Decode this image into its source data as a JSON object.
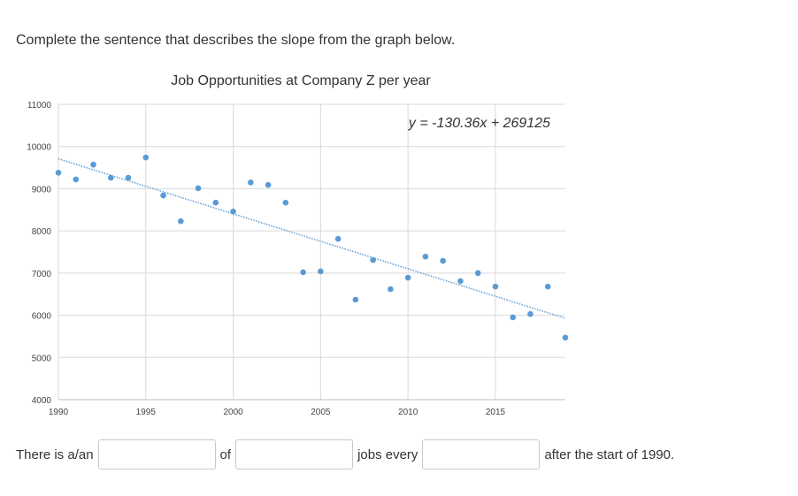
{
  "question": "Complete the sentence that describes the slope from the graph below.",
  "chart_data": {
    "type": "scatter",
    "title": "Job Opportunities at Company Z per year",
    "xlabel": "",
    "ylabel": "",
    "xlim": [
      1990,
      2019
    ],
    "ylim": [
      4000,
      11000
    ],
    "xticks": [
      "1990",
      "1995",
      "2000",
      "2005",
      "2010",
      "2015"
    ],
    "yticks": [
      "4000",
      "5000",
      "6000",
      "7000",
      "8000",
      "9000",
      "10000",
      "11000"
    ],
    "grid": true,
    "x": [
      1990,
      1991,
      1992,
      1993,
      1994,
      1995,
      1996,
      1997,
      1998,
      1999,
      2000,
      2001,
      2002,
      2003,
      2004,
      2005,
      2006,
      2007,
      2008,
      2009,
      2010,
      2011,
      2012,
      2013,
      2014,
      2015,
      2016,
      2017,
      2018,
      2019
    ],
    "y": [
      9380,
      9220,
      9570,
      9260,
      9260,
      9740,
      8840,
      8230,
      9010,
      8670,
      8460,
      9150,
      9090,
      8670,
      7020,
      7040,
      7810,
      6370,
      7310,
      6620,
      6890,
      7390,
      7290,
      6810,
      7000,
      6680,
      5950,
      6030,
      6680,
      5470
    ],
    "trendline": {
      "slope": -130.36,
      "intercept": 269125,
      "label": "y = -130.36x + 269125"
    },
    "color": "#5b9bd5"
  },
  "sentence": {
    "part1": "There is a/an",
    "part2": "of",
    "part3": "jobs every",
    "part4": "after the start of 1990."
  }
}
